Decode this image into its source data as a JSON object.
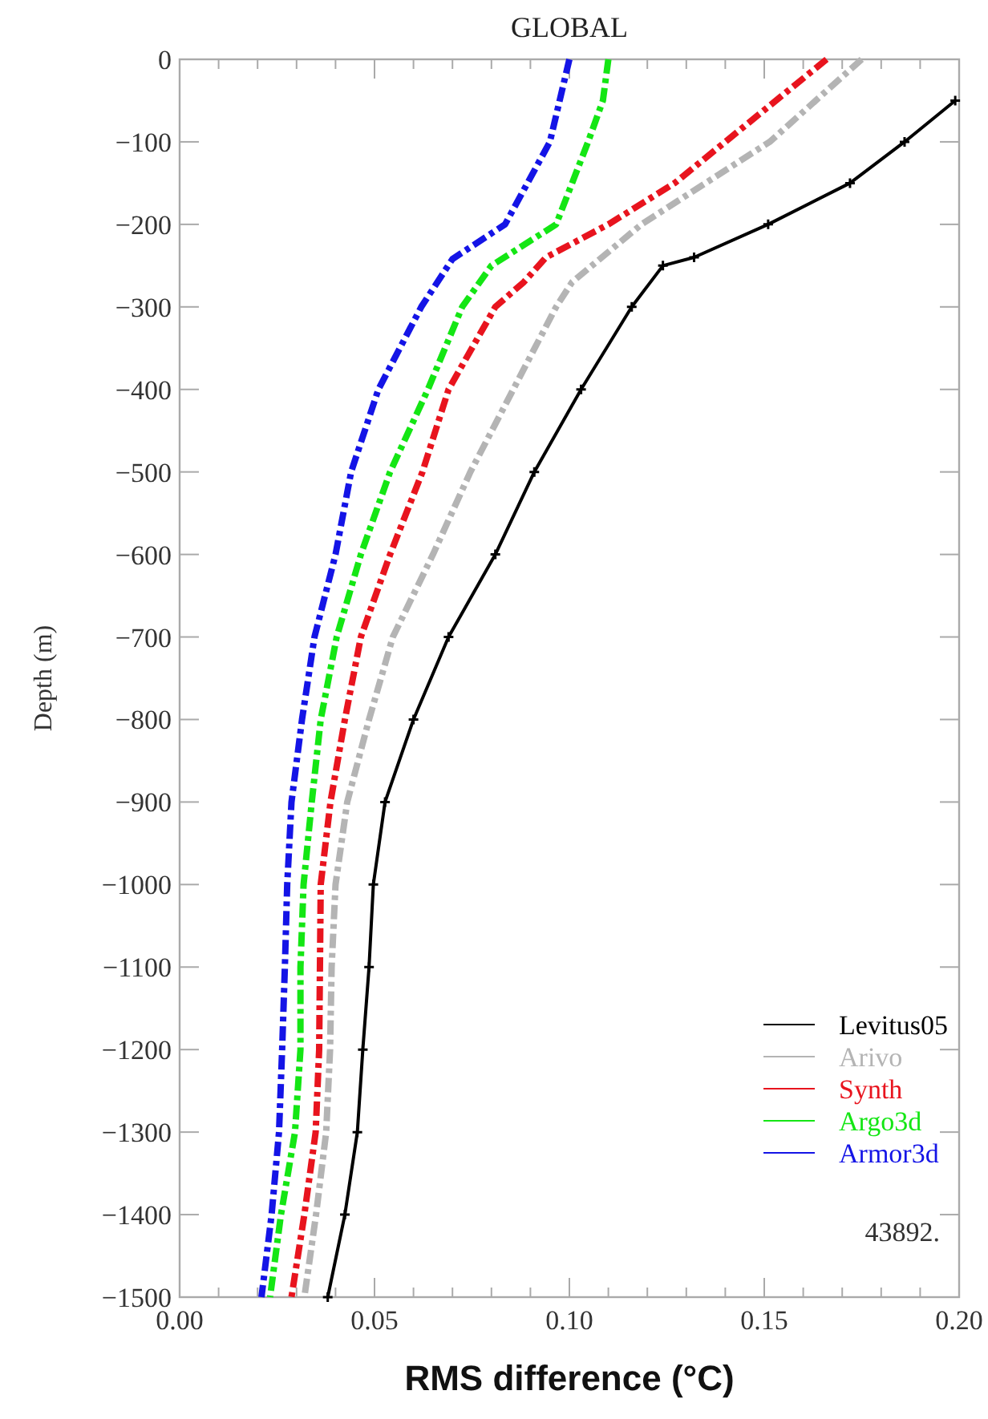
{
  "chart_data": {
    "type": "line",
    "title": "GLOBAL",
    "xlabel": "RMS difference (°C)",
    "ylabel": "Depth (m)",
    "xlim": [
      0,
      0.2
    ],
    "ylim": [
      -1500,
      0
    ],
    "xticks": [
      {
        "value": 0,
        "label": "0.00"
      },
      {
        "value": 0.01,
        "label": null
      },
      {
        "value": 0.02,
        "label": null
      },
      {
        "value": 0.03,
        "label": null
      },
      {
        "value": 0.04,
        "label": null
      },
      {
        "value": 0.05,
        "label": "0.05"
      },
      {
        "value": 0.06,
        "label": null
      },
      {
        "value": 0.07,
        "label": null
      },
      {
        "value": 0.08,
        "label": null
      },
      {
        "value": 0.09,
        "label": null
      },
      {
        "value": 0.1,
        "label": "0.10"
      },
      {
        "value": 0.11,
        "label": null
      },
      {
        "value": 0.12,
        "label": null
      },
      {
        "value": 0.13,
        "label": null
      },
      {
        "value": 0.14,
        "label": null
      },
      {
        "value": 0.15,
        "label": "0.15"
      },
      {
        "value": 0.16,
        "label": null
      },
      {
        "value": 0.17,
        "label": null
      },
      {
        "value": 0.18,
        "label": null
      },
      {
        "value": 0.19,
        "label": null
      },
      {
        "value": 0.2,
        "label": "0.20"
      }
    ],
    "yticks": [
      0,
      {
        "value": -100,
        "label": "−100"
      },
      {
        "value": -200,
        "label": "−200"
      },
      {
        "value": -300,
        "label": "−300"
      },
      {
        "value": -400,
        "label": "−400"
      },
      {
        "value": -500,
        "label": "−500"
      },
      {
        "value": -600,
        "label": "−600"
      },
      {
        "value": -700,
        "label": "−700"
      },
      {
        "value": -800,
        "label": "−800"
      },
      {
        "value": -900,
        "label": "−900"
      },
      {
        "value": -1000,
        "label": "−1000"
      },
      {
        "value": -1100,
        "label": "−1100"
      },
      {
        "value": -1200,
        "label": "−1200"
      },
      {
        "value": -1300,
        "label": "−1300"
      },
      {
        "value": -1400,
        "label": "−1400"
      },
      {
        "value": -1500,
        "label": "−1500"
      }
    ],
    "grid": false,
    "legend": "bottom right",
    "annotations": [
      "43892."
    ],
    "series": [
      {
        "name": "Levitus05",
        "color": "#000000",
        "line_style": "solid",
        "marker": "cross",
        "x": [
          0.199,
          0.186,
          0.172,
          0.151,
          0.132,
          0.124,
          0.116,
          0.103,
          0.091,
          0.081,
          0.069,
          0.06,
          0.0527,
          0.0497,
          0.0486,
          0.047,
          0.0456,
          0.0424,
          0.038
        ],
        "values": [
          -50,
          -100,
          -150,
          -200,
          -240,
          -250,
          -300,
          -400,
          -500,
          -600,
          -700,
          -800,
          -900,
          -1000,
          -1100,
          -1200,
          -1300,
          -1400,
          -1500
        ]
      },
      {
        "name": "Arivo",
        "color": "#b4b4b4",
        "line_style": "dashed",
        "marker": "none",
        "x": [
          0.175,
          0.1514,
          0.1185,
          0.1007,
          0.0966,
          0.0856,
          0.0746,
          0.065,
          0.0547,
          0.0486,
          0.043,
          0.04,
          0.039,
          0.0386,
          0.0376,
          0.035,
          0.032
        ],
        "values": [
          0,
          -100,
          -200,
          -270,
          -300,
          -400,
          -500,
          -600,
          -700,
          -800,
          -900,
          -1000,
          -1100,
          -1200,
          -1300,
          -1400,
          -1500
        ]
      },
      {
        "name": "Synth",
        "color": "#e8141e",
        "line_style": "dashed",
        "marker": "none",
        "x": [
          0.166,
          0.14,
          0.127,
          0.11,
          0.094,
          0.0883,
          0.081,
          0.069,
          0.0623,
          0.054,
          0.0465,
          0.0424,
          0.0387,
          0.0362,
          0.036,
          0.0358,
          0.0349,
          0.032,
          0.0287
        ],
        "values": [
          0,
          -100,
          -150,
          -200,
          -240,
          -270,
          -300,
          -400,
          -500,
          -600,
          -700,
          -800,
          -900,
          -1000,
          -1100,
          -1200,
          -1300,
          -1400,
          -1500
        ]
      },
      {
        "name": "Argo3d",
        "color": "#14e614",
        "line_style": "dashed",
        "marker": "none",
        "x": [
          0.11,
          0.1086,
          0.1048,
          0.0966,
          0.08,
          0.0725,
          0.0637,
          0.054,
          0.0465,
          0.0403,
          0.0362,
          0.0339,
          0.0318,
          0.031,
          0.031,
          0.0296,
          0.026,
          0.0232
        ],
        "values": [
          0,
          -50,
          -100,
          -200,
          -250,
          -300,
          -400,
          -500,
          -600,
          -700,
          -800,
          -900,
          -1000,
          -1100,
          -1200,
          -1300,
          -1400,
          -1500
        ]
      },
      {
        "name": "Armor3d",
        "color": "#1414e6",
        "line_style": "dashed",
        "marker": "none",
        "x": [
          0.1,
          0.095,
          0.0835,
          0.07,
          0.062,
          0.051,
          0.044,
          0.04,
          0.0346,
          0.0314,
          0.0287,
          0.0276,
          0.027,
          0.0263,
          0.0255,
          0.0236,
          0.021
        ],
        "values": [
          0,
          -100,
          -200,
          -242,
          -300,
          -400,
          -500,
          -600,
          -700,
          -800,
          -900,
          -1000,
          -1100,
          -1200,
          -1300,
          -1400,
          -1500
        ]
      }
    ]
  }
}
